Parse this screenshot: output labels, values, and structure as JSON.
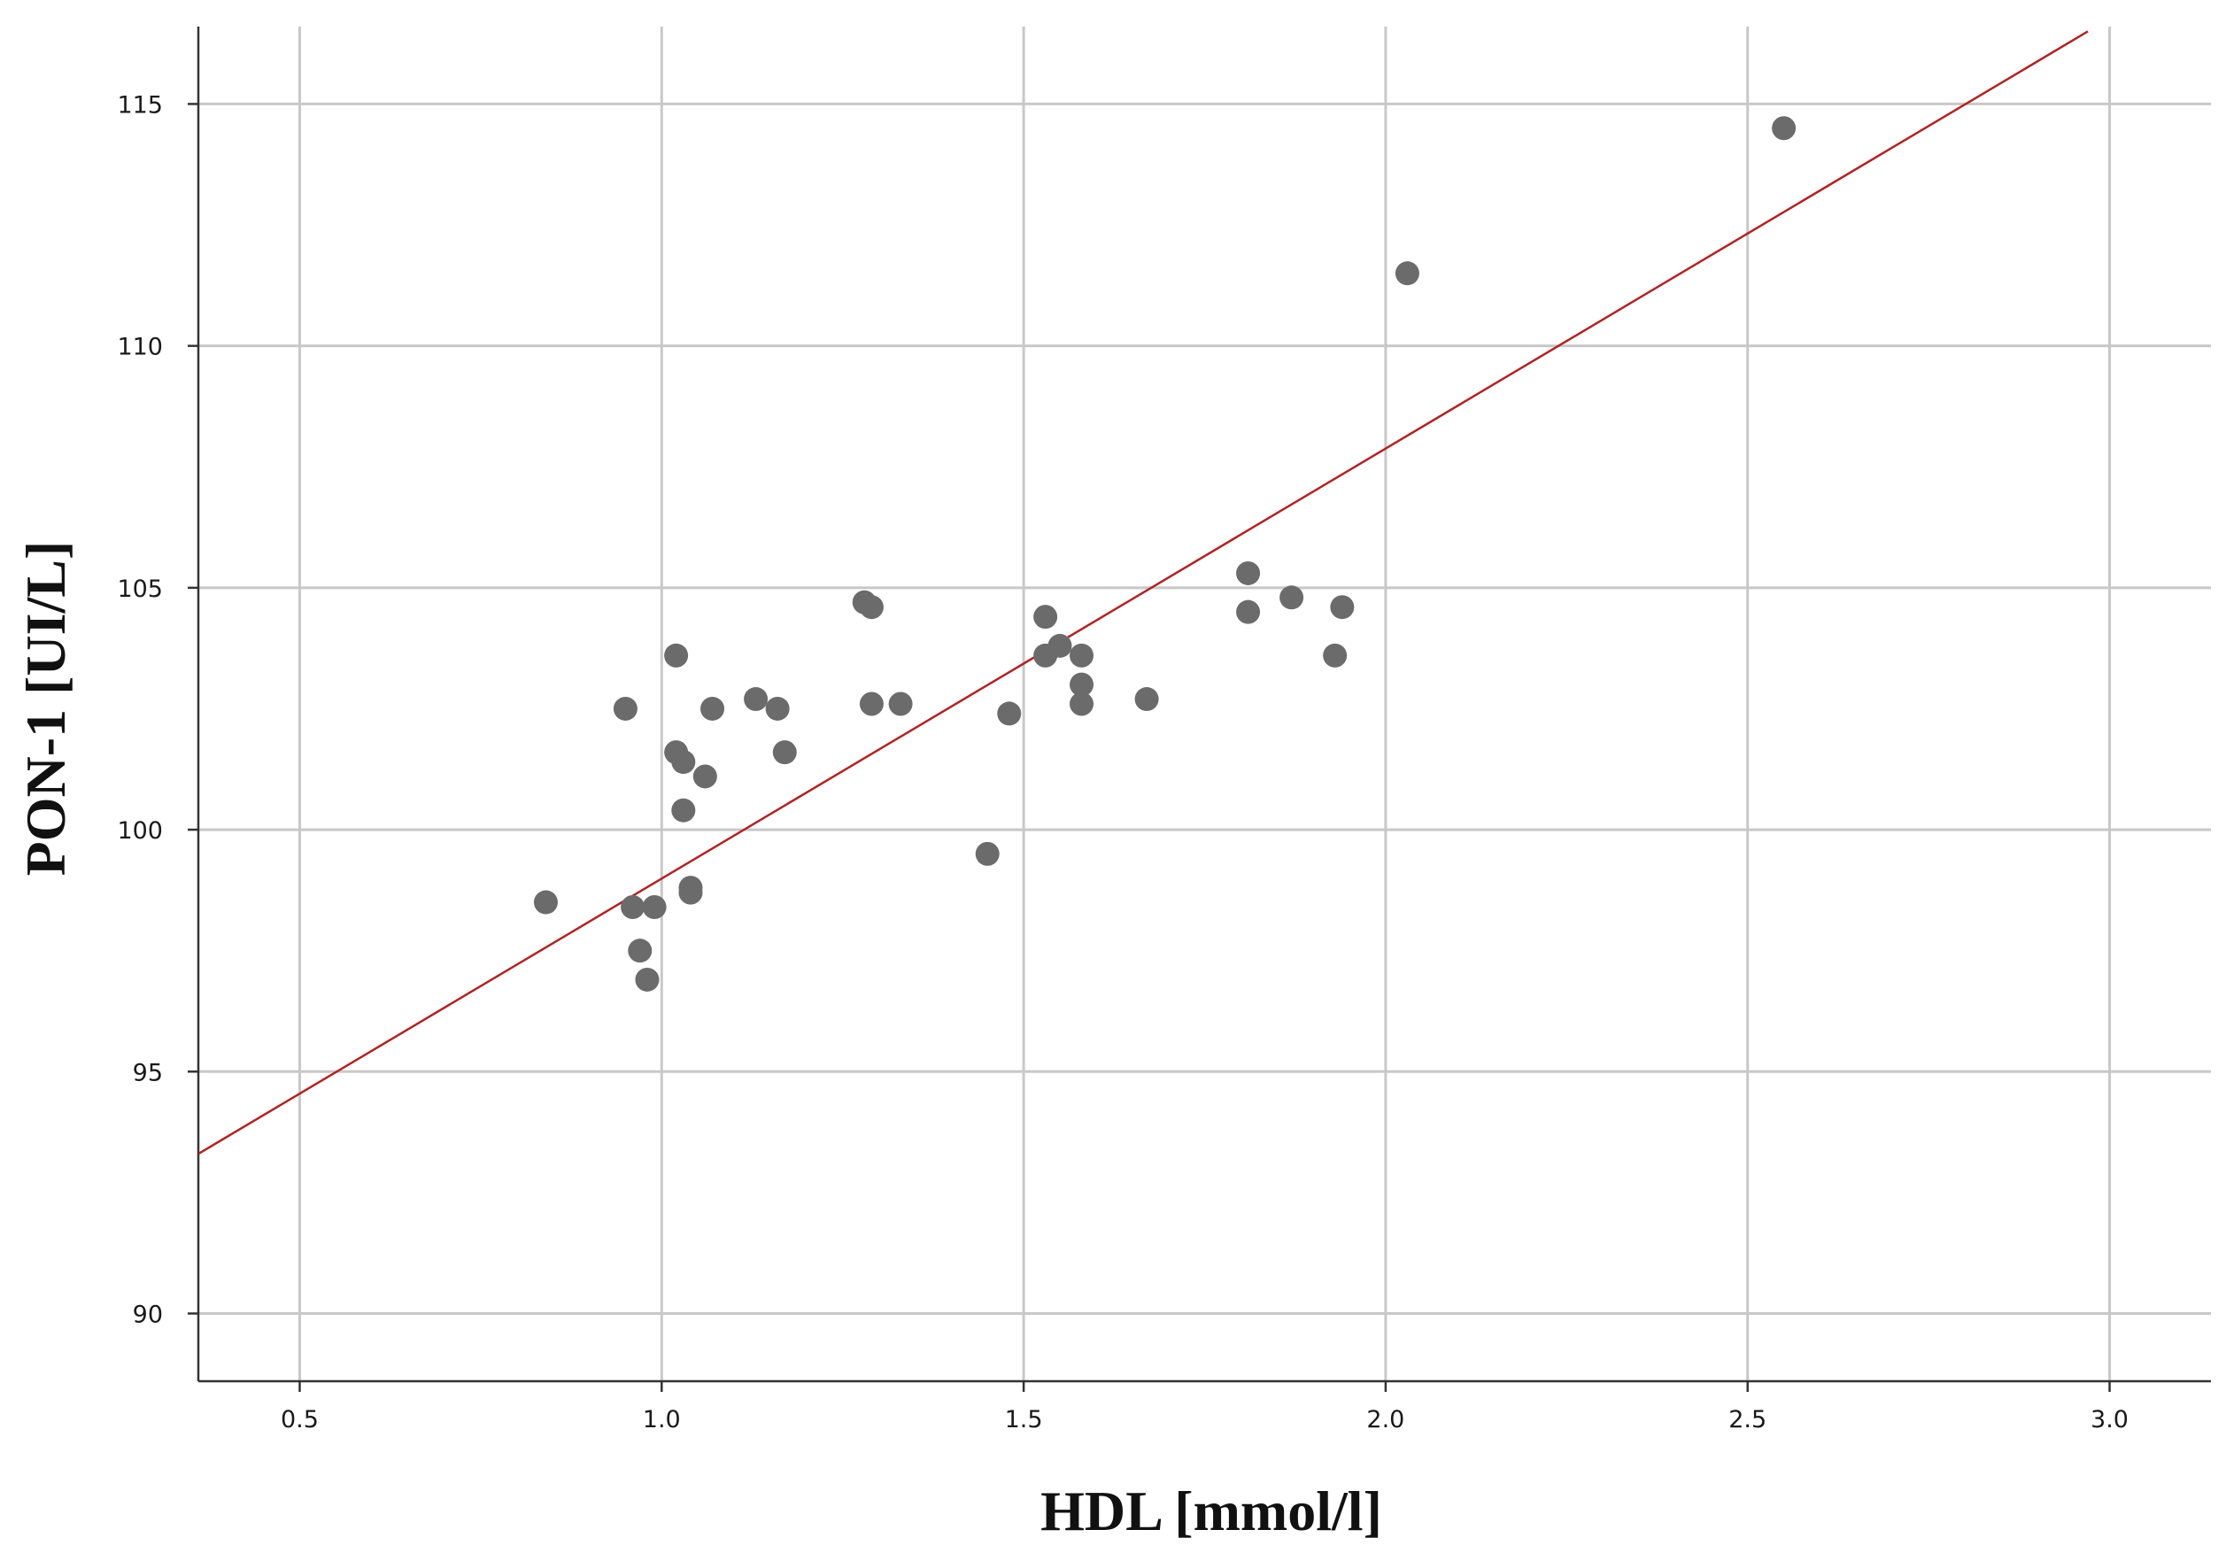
{
  "chart_data": {
    "type": "scatter",
    "title": "",
    "xlabel": "HDL [mmol/l]",
    "ylabel": "PON-1 [UI/L]",
    "xlim": [
      0.36,
      3.14
    ],
    "ylim": [
      88.6,
      116.6
    ],
    "x_ticks": [
      0.5,
      1.0,
      1.5,
      2.0,
      2.5,
      3.0
    ],
    "x_tick_labels": [
      "0.5",
      "1.0",
      "1.5",
      "2.0",
      "2.5",
      "3.0"
    ],
    "y_ticks": [
      90,
      95,
      100,
      105,
      110,
      115
    ],
    "y_tick_labels": [
      "90",
      "95",
      "100",
      "105",
      "110",
      "115"
    ],
    "grid": true,
    "legend": "none",
    "series": [
      {
        "marker_color": "#6b6b6b",
        "points": [
          {
            "x": 0.84,
            "y": 98.5
          },
          {
            "x": 0.95,
            "y": 102.5
          },
          {
            "x": 0.96,
            "y": 98.4
          },
          {
            "x": 0.97,
            "y": 97.5
          },
          {
            "x": 0.98,
            "y": 96.9
          },
          {
            "x": 0.99,
            "y": 98.4
          },
          {
            "x": 1.02,
            "y": 103.6
          },
          {
            "x": 1.02,
            "y": 101.6
          },
          {
            "x": 1.03,
            "y": 101.4
          },
          {
            "x": 1.03,
            "y": 100.4
          },
          {
            "x": 1.04,
            "y": 98.8
          },
          {
            "x": 1.04,
            "y": 98.7
          },
          {
            "x": 1.06,
            "y": 101.1
          },
          {
            "x": 1.07,
            "y": 102.5
          },
          {
            "x": 1.13,
            "y": 102.7
          },
          {
            "x": 1.16,
            "y": 102.5
          },
          {
            "x": 1.17,
            "y": 101.6
          },
          {
            "x": 1.28,
            "y": 104.7
          },
          {
            "x": 1.29,
            "y": 104.6
          },
          {
            "x": 1.29,
            "y": 102.6
          },
          {
            "x": 1.33,
            "y": 102.6
          },
          {
            "x": 1.45,
            "y": 99.5
          },
          {
            "x": 1.48,
            "y": 102.4
          },
          {
            "x": 1.53,
            "y": 104.4
          },
          {
            "x": 1.53,
            "y": 103.6
          },
          {
            "x": 1.55,
            "y": 103.8
          },
          {
            "x": 1.58,
            "y": 103.6
          },
          {
            "x": 1.58,
            "y": 103.0
          },
          {
            "x": 1.58,
            "y": 102.6
          },
          {
            "x": 1.67,
            "y": 102.7
          },
          {
            "x": 1.81,
            "y": 105.3
          },
          {
            "x": 1.81,
            "y": 104.5
          },
          {
            "x": 1.87,
            "y": 104.8
          },
          {
            "x": 1.93,
            "y": 103.6
          },
          {
            "x": 1.94,
            "y": 104.6
          },
          {
            "x": 2.03,
            "y": 111.5
          },
          {
            "x": 2.55,
            "y": 114.5
          }
        ]
      }
    ],
    "fit_line": {
      "color": "#b22222",
      "points": [
        {
          "x": 0.36,
          "y": 93.3
        },
        {
          "x": 2.97,
          "y": 116.5
        }
      ]
    }
  }
}
